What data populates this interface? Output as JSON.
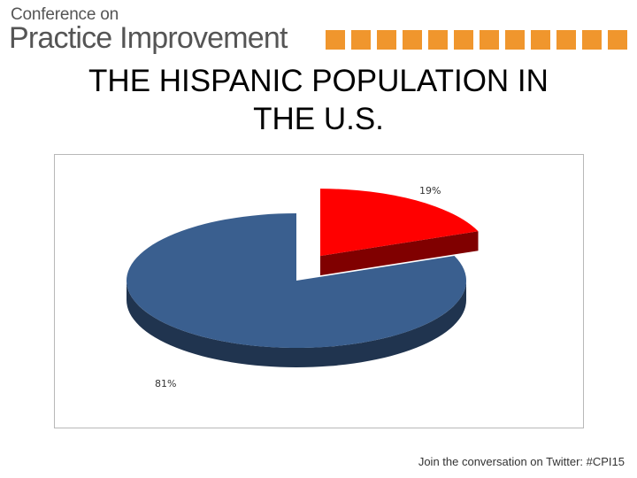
{
  "header": {
    "logo_line1": "Conference on",
    "logo_line2": "Practice Improvement",
    "square_color": "#f0962d",
    "square_count": 12
  },
  "slide": {
    "title_line1": "THE HISPANIC POPULATION IN",
    "title_line2": "THE U.S."
  },
  "chart_data": {
    "type": "pie",
    "style": "3d-exploded",
    "slices": [
      {
        "value": 19,
        "label": "19%",
        "color": "#ff0000",
        "exploded": true
      },
      {
        "value": 81,
        "label": "81%",
        "color": "#3a5f8f",
        "exploded": false
      }
    ]
  },
  "footer": {
    "text": "Join the conversation on Twitter: #CPI15"
  }
}
